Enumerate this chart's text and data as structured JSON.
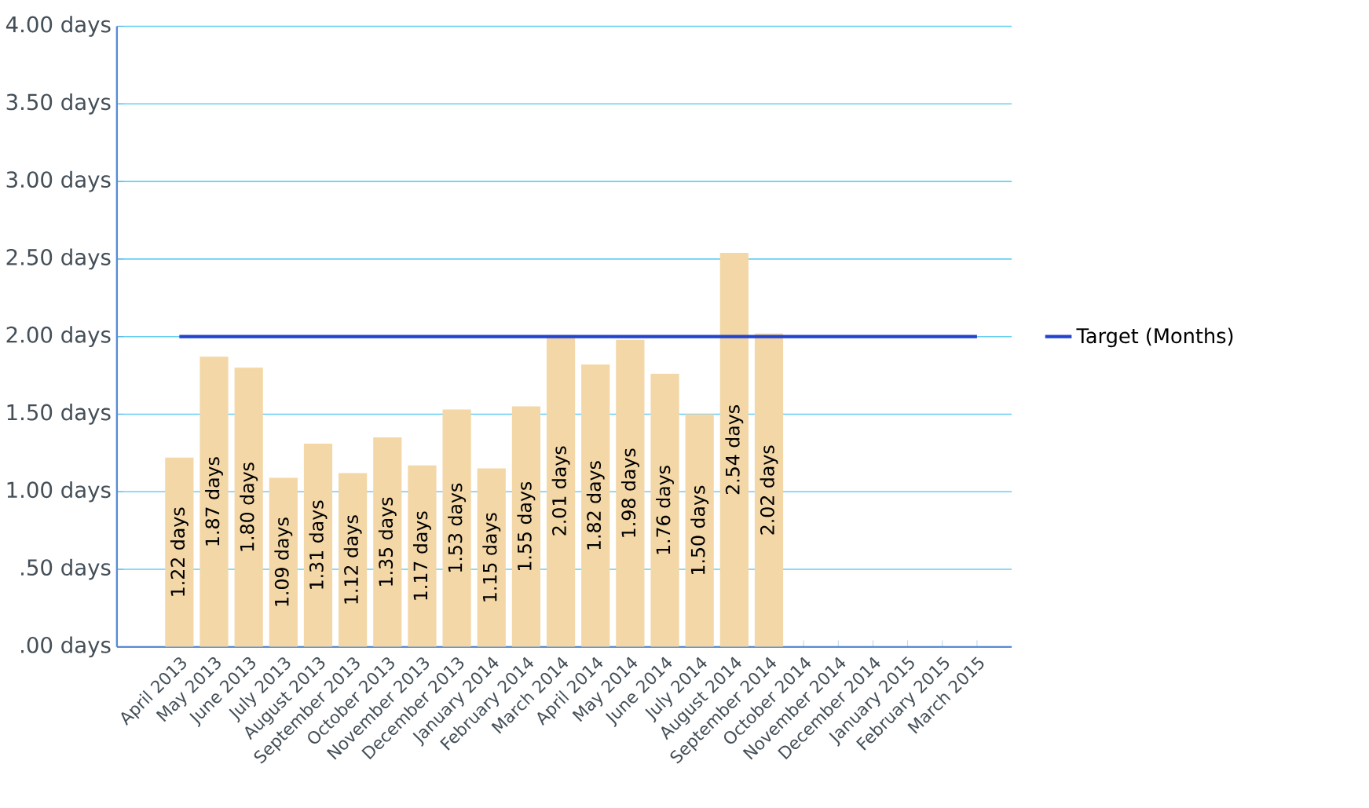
{
  "chart_data": {
    "type": "bar",
    "categories": [
      "April 2013",
      "May 2013",
      "June 2013",
      "July 2013",
      "August 2013",
      "September 2013",
      "October 2013",
      "November 2013",
      "December 2013",
      "January 2014",
      "February 2014",
      "March 2014",
      "April 2014",
      "May 2014",
      "June 2014",
      "July 2014",
      "August 2014",
      "September 2014",
      "October 2014",
      "November 2014",
      "December 2014",
      "January 2015",
      "February 2015",
      "March 2015"
    ],
    "series": [
      {
        "type": "bar",
        "color": "#f3d7a6",
        "values": [
          1.22,
          1.87,
          1.8,
          1.09,
          1.31,
          1.12,
          1.35,
          1.17,
          1.53,
          1.15,
          1.55,
          2.01,
          1.82,
          1.98,
          1.76,
          1.5,
          2.54,
          2.02,
          null,
          null,
          null,
          null,
          null,
          null
        ],
        "value_labels": [
          "1.22 days",
          "1.87 days",
          "1.80 days",
          "1.09 days",
          "1.31 days",
          "1.12 days",
          "1.35 days",
          "1.17 days",
          "1.53 days",
          "1.15 days",
          "1.55 days",
          "2.01 days",
          "1.82 days",
          "1.98 days",
          "1.76 days",
          "1.50 days",
          "2.54 days",
          "2.02 days",
          null,
          null,
          null,
          null,
          null,
          null
        ]
      },
      {
        "type": "line",
        "name": "Target (Months)",
        "color": "#2244cc",
        "values": [
          2,
          2,
          2,
          2,
          2,
          2,
          2,
          2,
          2,
          2,
          2,
          2,
          2,
          2,
          2,
          2,
          2,
          2,
          2,
          2,
          2,
          2,
          2,
          2
        ]
      }
    ],
    "ylim": [
      0,
      4
    ],
    "yticks": [
      {
        "value": 0,
        "label": ".00 days"
      },
      {
        "value": 0.5,
        "label": ".50 days"
      },
      {
        "value": 1,
        "label": "1.00 days"
      },
      {
        "value": 1.5,
        "label": "1.50 days"
      },
      {
        "value": 2,
        "label": "2.00 days"
      },
      {
        "value": 2.5,
        "label": "2.50 days"
      },
      {
        "value": 3,
        "label": "3.00 days"
      },
      {
        "value": 3.5,
        "label": "3.50 days"
      },
      {
        "value": 4,
        "label": "4.00 days"
      }
    ],
    "grid": "y",
    "legend": "right"
  }
}
